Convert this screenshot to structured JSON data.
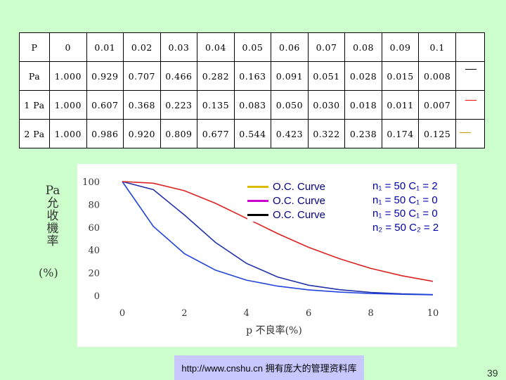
{
  "table": {
    "header": [
      "P",
      "0",
      "0.01",
      "0.02",
      "0.03",
      "0.04",
      "0.05",
      "0.06",
      "0.07",
      "0.08",
      "0.09",
      "0.1"
    ],
    "rows": [
      {
        "label": "Pa",
        "values": [
          "1.000",
          "0.929",
          "0.707",
          "0.466",
          "0.282",
          "0.163",
          "0.091",
          "0.051",
          "0.028",
          "0.015",
          "0.008"
        ],
        "color": "#000000"
      },
      {
        "label": "1 Pa",
        "values": [
          "1.000",
          "0.607",
          "0.368",
          "0.223",
          "0.135",
          "0.083",
          "0.050",
          "0.030",
          "0.018",
          "0.011",
          "0.007"
        ],
        "color": "#ff0000"
      },
      {
        "label": "2 Pa",
        "values": [
          "1.000",
          "0.986",
          "0.920",
          "0.809",
          "0.677",
          "0.544",
          "0.423",
          "0.322",
          "0.238",
          "0.174",
          "0.125"
        ],
        "color": "#cc9900"
      }
    ]
  },
  "axis_labels": {
    "y_side": [
      "Pa",
      "允",
      "收",
      "機",
      "率"
    ],
    "y_unit": "(%)",
    "x": "p 不良率(%)"
  },
  "legend": [
    {
      "label": "O.C. Curve",
      "color": "#ddbb00"
    },
    {
      "label": "O.C. Curve",
      "color": "#cc00cc"
    },
    {
      "label": "O.C. Curve",
      "color": "#000000"
    }
  ],
  "notes": [
    "n₁ = 50 C₁ = 2",
    "n₁ = 50 C₁ = 0",
    "n₁ = 50 C₁ = 0",
    "n₂ = 50 C₂ = 2"
  ],
  "footer": {
    "url_text": "http://www.cnshu.cn 拥有庞大的管理资料库",
    "page_number": "39"
  },
  "chart_data": {
    "type": "line",
    "xlabel": "p 不良率(%)",
    "ylabel": "Pa 允收機率 (%)",
    "xlim": [
      0,
      10
    ],
    "ylim": [
      0,
      100
    ],
    "xticks": [
      0,
      2,
      4,
      6,
      8,
      10
    ],
    "yticks": [
      0,
      20,
      40,
      60,
      80,
      100
    ],
    "series": [
      {
        "color": "#2233aa",
        "x": [
          0,
          1,
          2,
          3,
          4,
          5,
          6,
          7,
          8,
          9,
          10
        ],
        "y": [
          100,
          92.9,
          70.7,
          46.6,
          28.2,
          16.3,
          9.1,
          5.1,
          2.8,
          1.5,
          0.8
        ]
      },
      {
        "color": "#2244dd",
        "x": [
          0,
          1,
          2,
          3,
          4,
          5,
          6,
          7,
          8,
          9,
          10
        ],
        "y": [
          100,
          60.7,
          36.8,
          22.3,
          13.5,
          8.3,
          5.0,
          3.0,
          1.8,
          1.1,
          0.7
        ]
      },
      {
        "color": "#dd2222",
        "x": [
          0,
          1,
          2,
          3,
          4,
          5,
          6,
          7,
          8,
          9,
          10
        ],
        "y": [
          100,
          98.6,
          92.0,
          80.9,
          67.7,
          54.4,
          42.3,
          32.2,
          23.8,
          17.4,
          12.5
        ]
      }
    ]
  }
}
